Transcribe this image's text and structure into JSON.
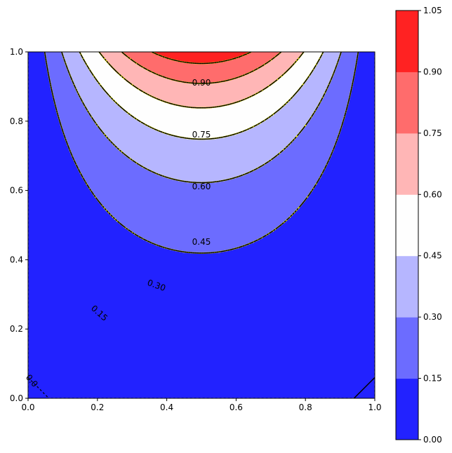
{
  "chart_data": {
    "type": "contourf",
    "title": "",
    "xlabel": "",
    "ylabel": "",
    "xlim": [
      0.0,
      1.0
    ],
    "ylim": [
      0.0,
      1.0
    ],
    "x_ticks": [
      "0.0",
      "0.2",
      "0.4",
      "0.6",
      "0.8",
      "1.0"
    ],
    "y_ticks": [
      "0.0",
      "0.2",
      "0.4",
      "0.6",
      "0.8",
      "1.0"
    ],
    "levels": [
      0.0,
      0.15,
      0.3,
      0.45,
      0.6,
      0.75,
      0.9,
      1.05
    ],
    "colorbar_ticks": [
      "0.00",
      "0.15",
      "0.30",
      "0.45",
      "0.60",
      "0.75",
      "0.90",
      "1.05"
    ],
    "band_colors": [
      "#2222ff",
      "#6c6cff",
      "#b6b6ff",
      "#fefefe",
      "#ffb6b6",
      "#ff6c6c",
      "#ff2222"
    ],
    "contour_line_style": "black dashed with yellow underlay",
    "contour_labels": [
      {
        "level": 0.9,
        "text": "0.90",
        "x": 0.5,
        "y": 0.91
      },
      {
        "level": 0.75,
        "text": "0.75",
        "x": 0.5,
        "y": 0.76
      },
      {
        "level": 0.6,
        "text": "0.60",
        "x": 0.5,
        "y": 0.61
      },
      {
        "level": 0.45,
        "text": "0.45",
        "x": 0.5,
        "y": 0.45
      },
      {
        "level": 0.3,
        "text": "0.30",
        "x": 0.37,
        "y": 0.325
      },
      {
        "level": 0.15,
        "text": "0.15",
        "x": 0.205,
        "y": 0.245
      },
      {
        "level": 0.0,
        "text": "0.0",
        "x": 0.01,
        "y": 0.05
      }
    ],
    "field": "sin(pi*x) * sinh(pi*y) / sinh(pi)",
    "grid": false,
    "colorbar_position": "right"
  }
}
